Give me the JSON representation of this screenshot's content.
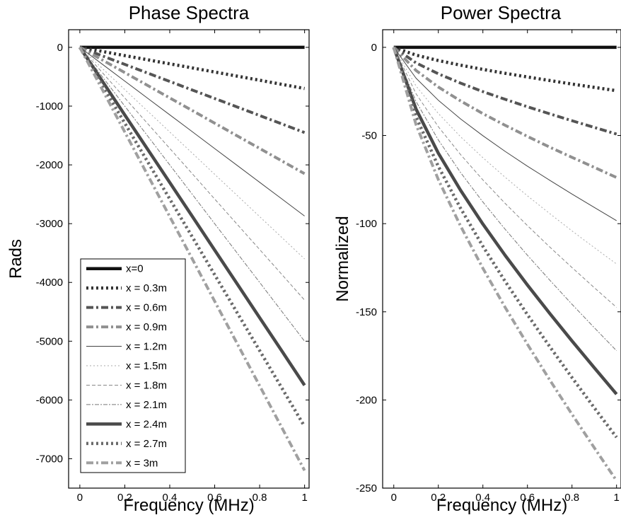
{
  "chart_data": [
    {
      "type": "line",
      "title": "Phase Spectra",
      "xlabel": "Frequency (MHz)",
      "ylabel": "Rads",
      "xlim": [
        -0.05,
        1.02
      ],
      "ylim": [
        -7500,
        300
      ],
      "xticks": [
        0,
        0.2,
        0.4,
        0.6,
        0.8,
        1
      ],
      "xtick_labels": [
        "0",
        "0.2",
        "0.4",
        "0.6",
        "0.8",
        "1"
      ],
      "yticks": [
        0,
        -1000,
        -2000,
        -3000,
        -4000,
        -5000,
        -6000,
        -7000
      ],
      "ytick_labels": [
        "0",
        "-1000",
        "-2000",
        "-3000",
        "-4000",
        "-5000",
        "-6000",
        "-7000"
      ],
      "legend_placement": "lower-left",
      "x": [
        0,
        0.1,
        0.2,
        0.3,
        0.4,
        0.5,
        0.6,
        0.7,
        0.8,
        0.9,
        1.0
      ],
      "series": [
        {
          "name": "x=0",
          "values": [
            0,
            0,
            0,
            0,
            0,
            0,
            0,
            0,
            0,
            0,
            0
          ]
        },
        {
          "name": "x = 0.3m",
          "values": [
            0,
            -70,
            -140,
            -210,
            -280,
            -350,
            -420,
            -490,
            -560,
            -630,
            -700
          ]
        },
        {
          "name": "x = 0.6m",
          "values": [
            0,
            -145,
            -290,
            -435,
            -580,
            -725,
            -870,
            -1015,
            -1160,
            -1305,
            -1450
          ]
        },
        {
          "name": "x = 0.9m",
          "values": [
            0,
            -215,
            -430,
            -645,
            -860,
            -1075,
            -1290,
            -1505,
            -1720,
            -1935,
            -2150
          ]
        },
        {
          "name": "x = 1.2m",
          "values": [
            0,
            -287,
            -574,
            -861,
            -1148,
            -1435,
            -1722,
            -2009,
            -2296,
            -2583,
            -2870
          ]
        },
        {
          "name": "x = 1.5m",
          "values": [
            0,
            -360,
            -720,
            -1080,
            -1440,
            -1800,
            -2160,
            -2520,
            -2880,
            -3240,
            -3600
          ]
        },
        {
          "name": "x = 1.8m",
          "values": [
            0,
            -430,
            -860,
            -1290,
            -1720,
            -2150,
            -2580,
            -3010,
            -3440,
            -3870,
            -4300
          ]
        },
        {
          "name": "x = 2.1m",
          "values": [
            0,
            -500,
            -1000,
            -1500,
            -2000,
            -2500,
            -3000,
            -3500,
            -4000,
            -4500,
            -5000
          ]
        },
        {
          "name": "x = 2.4m",
          "values": [
            0,
            -575,
            -1150,
            -1725,
            -2300,
            -2875,
            -3450,
            -4025,
            -4600,
            -5175,
            -5750
          ]
        },
        {
          "name": "x = 2.7m",
          "values": [
            0,
            -645,
            -1290,
            -1935,
            -2580,
            -3225,
            -3870,
            -4515,
            -5160,
            -5805,
            -6450
          ]
        },
        {
          "name": "x = 3m",
          "values": [
            0,
            -720,
            -1440,
            -2160,
            -2880,
            -3600,
            -4320,
            -5040,
            -5760,
            -6480,
            -7200
          ]
        }
      ]
    },
    {
      "type": "line",
      "title": "Power Spectra",
      "xlabel": "Frequency (MHz)",
      "ylabel": "Normalized",
      "xlim": [
        -0.05,
        1.02
      ],
      "ylim": [
        -250,
        10
      ],
      "xticks": [
        0,
        0.2,
        0.4,
        0.6,
        0.8,
        1
      ],
      "xtick_labels": [
        "0",
        "0.2",
        "0.4",
        "0.6",
        "0.8",
        "1"
      ],
      "yticks": [
        0,
        -50,
        -100,
        -150,
        -200,
        -250
      ],
      "ytick_labels": [
        "0",
        "-50",
        "-100",
        "-150",
        "-200",
        "-250"
      ],
      "x": [
        0,
        0.1,
        0.2,
        0.3,
        0.4,
        0.5,
        0.6,
        0.7,
        0.8,
        0.9,
        1.0
      ],
      "series": [
        {
          "name": "x=0",
          "values": [
            0,
            0,
            0,
            0,
            0,
            0,
            0,
            0,
            0,
            0,
            0
          ]
        },
        {
          "name": "x = 0.3m",
          "values": [
            0,
            -4.4,
            -7.5,
            -10.1,
            -12.5,
            -14.7,
            -16.8,
            -18.8,
            -20.8,
            -22.7,
            -24.6
          ]
        },
        {
          "name": "x = 0.6m",
          "values": [
            0,
            -8.8,
            -15,
            -20.3,
            -25.1,
            -29.5,
            -33.7,
            -37.7,
            -41.6,
            -45.4,
            -49.2
          ]
        },
        {
          "name": "x = 0.9m",
          "values": [
            0,
            -13.1,
            -22.5,
            -30.4,
            -37.6,
            -44.2,
            -50.5,
            -56.6,
            -62.4,
            -68.1,
            -73.8
          ]
        },
        {
          "name": "x = 1.2m",
          "values": [
            0,
            -17.5,
            -30,
            -40.6,
            -50.1,
            -59,
            -67.4,
            -75.4,
            -83.2,
            -90.8,
            -98.3
          ]
        },
        {
          "name": "x = 1.5m",
          "values": [
            0,
            -21.9,
            -37.5,
            -50.7,
            -62.6,
            -73.7,
            -84.2,
            -94.3,
            -104.1,
            -113.6,
            -122.9
          ]
        },
        {
          "name": "x = 1.8m",
          "values": [
            0,
            -26.3,
            -45,
            -60.8,
            -75.2,
            -88.5,
            -101.1,
            -113.2,
            -124.9,
            -136.3,
            -147.5
          ]
        },
        {
          "name": "x = 2.1m",
          "values": [
            0,
            -30.7,
            -52.5,
            -71,
            -87.7,
            -103.2,
            -117.9,
            -132,
            -145.7,
            -159,
            -172.1
          ]
        },
        {
          "name": "x = 2.4m",
          "values": [
            0,
            -35,
            -60,
            -81.1,
            -100.2,
            -118,
            -134.8,
            -150.9,
            -166.5,
            -181.7,
            -196.7
          ]
        },
        {
          "name": "x = 2.7m",
          "values": [
            0,
            -39.4,
            -67.5,
            -91.3,
            -112.8,
            -132.7,
            -151.6,
            -169.7,
            -187.3,
            -204.4,
            -221.2
          ]
        },
        {
          "name": "x = 3m",
          "values": [
            0,
            -43.8,
            -75,
            -101.4,
            -125.3,
            -147.5,
            -168.4,
            -188.6,
            -208.1,
            -227.1,
            -245.8
          ]
        }
      ]
    }
  ],
  "styles": [
    {
      "color": "#111111",
      "width": 4.5,
      "dash": ""
    },
    {
      "color": "#333333",
      "width": 4.5,
      "dash": "3 4"
    },
    {
      "color": "#555555",
      "width": 4,
      "dash": "10 4 3 4"
    },
    {
      "color": "#909090",
      "width": 4,
      "dash": "10 4 3 4"
    },
    {
      "color": "#444444",
      "width": 1,
      "dash": ""
    },
    {
      "color": "#aaaaaa",
      "width": 1,
      "dash": "2 3"
    },
    {
      "color": "#888888",
      "width": 1,
      "dash": "5 3"
    },
    {
      "color": "#777777",
      "width": 1,
      "dash": "6 2 2 2"
    },
    {
      "color": "#4a4a4a",
      "width": 4.5,
      "dash": ""
    },
    {
      "color": "#6a6a6a",
      "width": 4.5,
      "dash": "3 4"
    },
    {
      "color": "#a0a0a0",
      "width": 4,
      "dash": "10 4 3 4"
    }
  ]
}
